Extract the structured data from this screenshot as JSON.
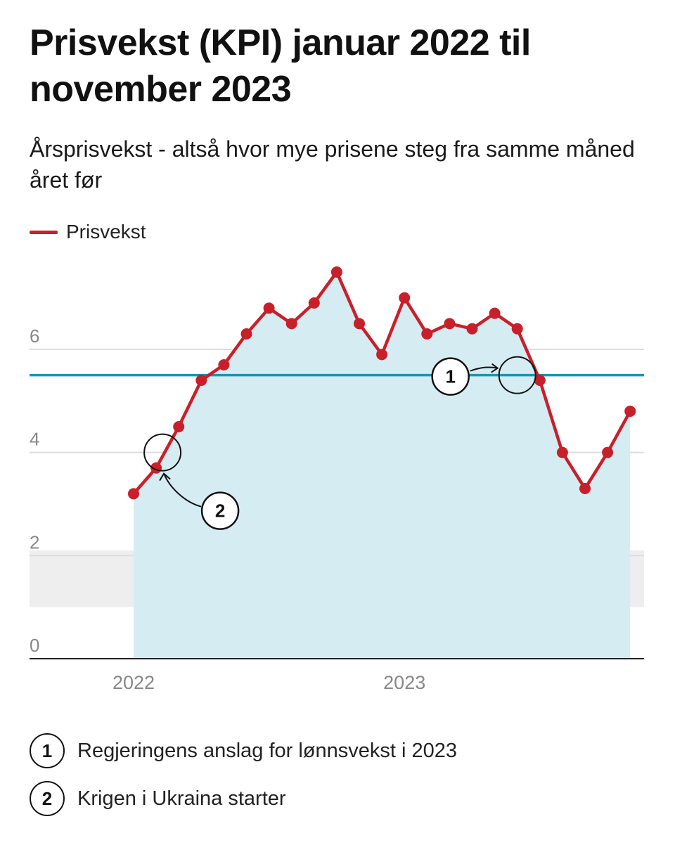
{
  "title": "Prisvekst (KPI) januar 2022 til november 2023",
  "subtitle": "Årsprisvekst - altså hvor mye prisene steg fra samme måned året før",
  "legend": {
    "label": "Prisvekst",
    "color": "#c8202a"
  },
  "chart_data": {
    "type": "line",
    "x": [
      "2022-01",
      "2022-02",
      "2022-03",
      "2022-04",
      "2022-05",
      "2022-06",
      "2022-07",
      "2022-08",
      "2022-09",
      "2022-10",
      "2022-11",
      "2022-12",
      "2023-01",
      "2023-02",
      "2023-03",
      "2023-04",
      "2023-05",
      "2023-06",
      "2023-07",
      "2023-08",
      "2023-09",
      "2023-10",
      "2023-11"
    ],
    "series": [
      {
        "name": "Prisvekst",
        "color": "#c8202a",
        "values": [
          3.2,
          3.7,
          4.5,
          5.4,
          5.7,
          6.3,
          6.8,
          6.5,
          6.9,
          7.5,
          6.5,
          5.9,
          7.0,
          6.3,
          6.5,
          6.4,
          6.7,
          6.4,
          5.4,
          4.0,
          3.3,
          4.0,
          4.8
        ]
      }
    ],
    "ylim": [
      0,
      7.5
    ],
    "yticks": [
      "0",
      "2",
      "4",
      "6"
    ],
    "xticks": [
      {
        "label": "2022",
        "x": "2022-01"
      },
      {
        "label": "2023",
        "x": "2023-01"
      }
    ],
    "reference_line": {
      "value": 5.5,
      "color": "#1a95b8"
    },
    "shaded_band": {
      "from": 1.0,
      "to": 2.1,
      "color": "#eeeeee"
    },
    "area_fill": "#d3ebf1",
    "grid": true,
    "legend_position": "top-left",
    "callouts": [
      {
        "number": "1",
        "x": "2023-06",
        "y": 5.5
      },
      {
        "number": "2",
        "x": "2022-02",
        "y": 4.0
      }
    ]
  },
  "notes": [
    {
      "number": "1",
      "text": "Regjeringens anslag for lønnsvekst i 2023"
    },
    {
      "number": "2",
      "text": "Krigen i Ukraina starter"
    }
  ]
}
